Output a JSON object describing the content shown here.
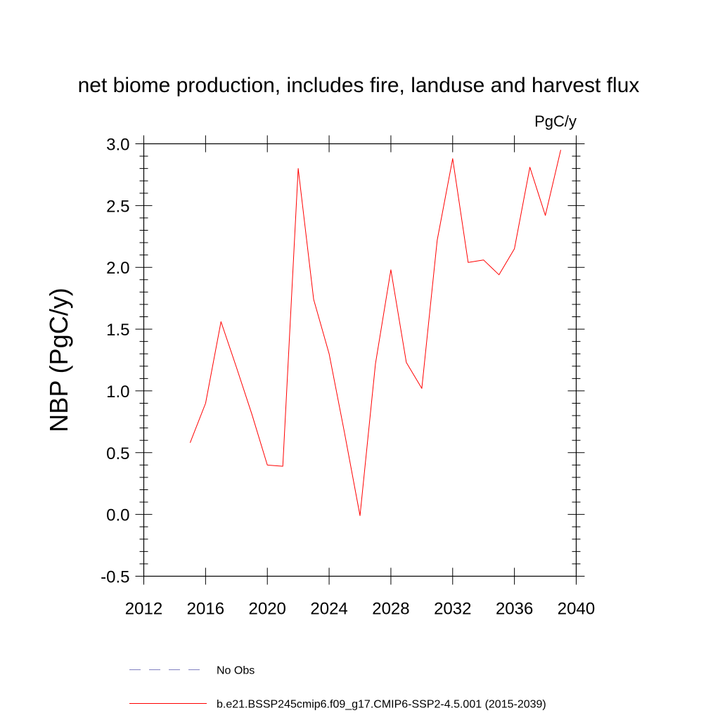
{
  "chart_data": {
    "type": "line",
    "title": "net biome production, includes fire, landuse and harvest flux",
    "units": "PgC/y",
    "xlabel": "",
    "ylabel": "NBP  (PgC/y)",
    "xlim": [
      2012,
      2040
    ],
    "ylim": [
      -0.5,
      3.0
    ],
    "xticks": [
      2012,
      2016,
      2020,
      2024,
      2028,
      2032,
      2036,
      2040
    ],
    "yticks": [
      -0.5,
      0.0,
      0.5,
      1.0,
      1.5,
      2.0,
      2.5,
      3.0
    ],
    "xtick_labels": [
      "2012",
      "2016",
      "2020",
      "2024",
      "2028",
      "2032",
      "2036",
      "2040"
    ],
    "ytick_labels": [
      "-0.5",
      "0.0",
      "0.5",
      "1.0",
      "1.5",
      "2.0",
      "2.5",
      "3.0"
    ],
    "grid": false,
    "series": [
      {
        "name": "b.e21.BSSP245cmip6.f09_g17.CMIP6-SSP2-4.5.001 (2015-2039)",
        "color": "#ff0000",
        "style": "solid",
        "x": [
          2015,
          2016,
          2017,
          2018,
          2019,
          2020,
          2021,
          2022,
          2023,
          2024,
          2025,
          2026,
          2027,
          2028,
          2029,
          2030,
          2031,
          2032,
          2033,
          2034,
          2035,
          2036,
          2037,
          2038,
          2039
        ],
        "y": [
          0.58,
          0.9,
          1.56,
          1.19,
          0.81,
          0.4,
          0.39,
          2.8,
          1.74,
          1.3,
          0.66,
          -0.01,
          1.22,
          1.98,
          1.23,
          1.02,
          2.22,
          2.88,
          2.04,
          2.06,
          1.94,
          2.15,
          2.81,
          2.42,
          2.95
        ]
      }
    ],
    "legend": [
      {
        "label": "No Obs",
        "color": "#8080c0",
        "style": "dashed"
      },
      {
        "label": "b.e21.BSSP245cmip6.f09_g17.CMIP6-SSP2-4.5.001 (2015-2039)",
        "color": "#ff0000",
        "style": "solid"
      }
    ],
    "legend_position": "bottom"
  }
}
